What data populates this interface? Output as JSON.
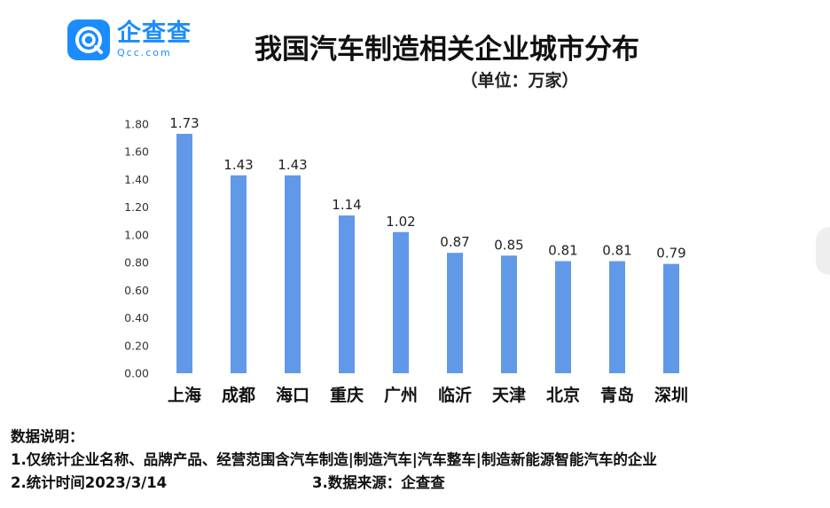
{
  "logo": {
    "cn": "企查查",
    "en": "Qcc.com",
    "icon": "qcc-logo-icon",
    "color": "#1a8cff"
  },
  "chart_data": {
    "type": "bar",
    "title": "我国汽车制造相关企业城市分布",
    "subtitle": "（单位：万家）",
    "categories": [
      "上海",
      "成都",
      "海口",
      "重庆",
      "广州",
      "临沂",
      "天津",
      "北京",
      "青岛",
      "深圳"
    ],
    "values": [
      1.73,
      1.43,
      1.43,
      1.14,
      1.02,
      0.87,
      0.85,
      0.81,
      0.81,
      0.79
    ],
    "value_labels": [
      "1.73",
      "1.43",
      "1.43",
      "1.14",
      "1.02",
      "0.87",
      "0.85",
      "0.81",
      "0.81",
      "0.79"
    ],
    "ylim": [
      0,
      1.8
    ],
    "yticks": [
      0,
      0.2,
      0.4,
      0.6,
      0.8,
      1.0,
      1.2,
      1.4,
      1.6,
      1.8
    ],
    "ytick_labels": [
      "0.00",
      "0.20",
      "0.40",
      "0.60",
      "0.80",
      "1.00",
      "1.20",
      "1.40",
      "1.60",
      "1.80"
    ],
    "bar_color": "#6199e8",
    "grid": false,
    "legend": "none"
  },
  "notes": {
    "heading": "数据说明：",
    "line1": "1.仅统计企业名称、品牌产品、经营范围含汽车制造|制造汽车|汽车整车|制造新能源智能汽车的企业",
    "line2": "2.统计时间2023/3/14",
    "line3": "3.数据来源：企查查"
  }
}
